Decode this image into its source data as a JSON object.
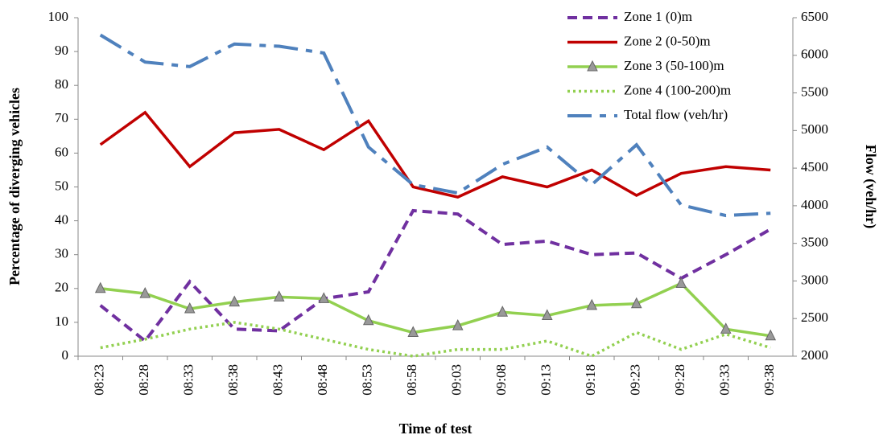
{
  "chart_data": {
    "type": "line",
    "x_label": "Time of test",
    "y_label": "Percentage of diverging vehicles",
    "y2_label": "Flow (veh/hr)",
    "categories": [
      "08:23",
      "08:28",
      "08:33",
      "08:38",
      "08:43",
      "08:48",
      "08:53",
      "08:58",
      "09:03",
      "09:08",
      "09:13",
      "09:18",
      "09:23",
      "09:28",
      "09:33",
      "09:38"
    ],
    "ylim": [
      0,
      100
    ],
    "yticks": [
      0,
      10,
      20,
      30,
      40,
      50,
      60,
      70,
      80,
      90,
      100
    ],
    "y2lim": [
      2000,
      6500
    ],
    "y2ticks": [
      2000,
      2500,
      3000,
      3500,
      4000,
      4500,
      5000,
      5500,
      6000,
      6500
    ],
    "legend": "upper right",
    "series": [
      {
        "name": "Zone 1 (0)m",
        "color": "#7030a0",
        "style": "dashed",
        "values": [
          15,
          4.5,
          22,
          8,
          7.5,
          17,
          19,
          43,
          42,
          33,
          34,
          30,
          30.5,
          23,
          30,
          37.5
        ]
      },
      {
        "name": "Zone 2 (0-50)m",
        "color": "#c00000",
        "style": "solid",
        "values": [
          62.5,
          72,
          56,
          66,
          67,
          61,
          69.5,
          50,
          47,
          53,
          50,
          55,
          47.5,
          54,
          56,
          55
        ]
      },
      {
        "name": "Zone 3 (50-100)m",
        "color": "#92d050",
        "style": "solid",
        "marker": "triangle",
        "values": [
          20,
          18.5,
          14,
          16,
          17.5,
          17,
          10.5,
          7,
          9,
          13,
          12,
          15,
          15.5,
          21.5,
          8,
          6
        ]
      },
      {
        "name": "Zone 4 (100-200)m",
        "color": "#92d050",
        "style": "dotted",
        "values": [
          2.5,
          5,
          8,
          10,
          8,
          5,
          2,
          0,
          2,
          2,
          4.5,
          0,
          7,
          2,
          6.5,
          2.5
        ]
      },
      {
        "name": "Total flow (veh/hr)",
        "color": "#4f81bd",
        "style": "longdash",
        "axis": "y2",
        "values": [
          6270,
          5910,
          5850,
          6150,
          6120,
          6030,
          4780,
          4280,
          4170,
          4550,
          4780,
          4280,
          4810,
          4010,
          3870,
          3900
        ]
      }
    ]
  }
}
